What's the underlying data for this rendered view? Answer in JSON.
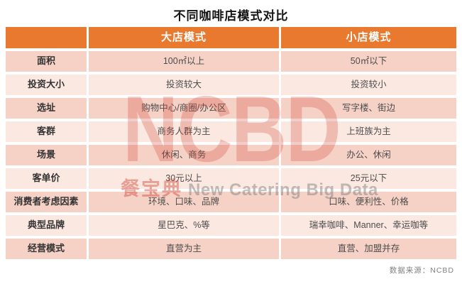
{
  "title": "不同咖啡店模式对比",
  "chart_data": {
    "type": "table",
    "title": "不同咖啡店模式对比",
    "columns": [
      "",
      "大店模式",
      "小店模式"
    ],
    "rows": [
      [
        "面积",
        "100㎡以上",
        "50㎡以下"
      ],
      [
        "投资大小",
        "投资较大",
        "投资较小"
      ],
      [
        "选址",
        "购物中心/商圈/办公区",
        "写字楼、街边"
      ],
      [
        "客群",
        "商务人群为主",
        "上班族为主"
      ],
      [
        "场景",
        "休闲、商务",
        "办公、休闲"
      ],
      [
        "客单价",
        "30元以上",
        "25元以下"
      ],
      [
        "消费者考虑因素",
        "环境、口味、品牌",
        "口味、便利性、价格"
      ],
      [
        "典型品牌",
        "星巴克、%等",
        "瑞幸咖啡、Manner、幸运咖等"
      ],
      [
        "经营模式",
        "直营为主",
        "直营、加盟并存"
      ]
    ],
    "source": "数据来源：NCBD",
    "layout": {
      "banded_rows": true,
      "header_position": "top"
    }
  },
  "watermark": {
    "logo": "NCBD",
    "brand": "餐宝典",
    "tagline": "New Catering Big Data"
  },
  "footer": {
    "source": "数据来源：NCBD"
  },
  "colors": {
    "header_bg": "#E8792E",
    "header_text": "#FFFFFF",
    "row_band_dark": "#F6D2C6",
    "row_band_light": "#FBE8E1",
    "label_text": "#333333",
    "value_text": "#4D4D4D",
    "watermark_red": "#CD3A2B",
    "source_text": "#808080"
  }
}
